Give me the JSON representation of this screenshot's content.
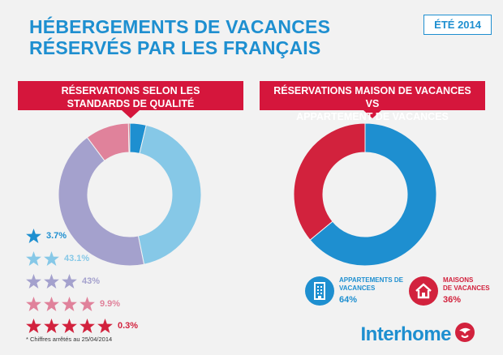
{
  "header": {
    "title_line1": "HÉBERGEMENTS DE VACANCES",
    "title_line2": "RÉSERVÉS PAR LES FRANÇAIS",
    "badge": "ÉTÉ 2014"
  },
  "banners": {
    "left_line1": "RÉSERVATIONS SELON LES",
    "left_line2": "STANDARDS DE QUALITÉ",
    "right_line1": "RÉSERVATIONS MAISON DE VACANCES VS",
    "right_line2": "APPARTEMENT DE VACANCES"
  },
  "colors": {
    "blue": "#1e8fd0",
    "red": "#d2223d",
    "banner_red": "#d5163c"
  },
  "chart_data": [
    {
      "type": "pie",
      "categories": [
        "1 star",
        "2 stars",
        "3 stars",
        "4 stars",
        "5 stars"
      ],
      "values": [
        3.7,
        43.1,
        43,
        9.9,
        0.3
      ],
      "labels": [
        "3.7%",
        "43.1%",
        "43%",
        "9.9%",
        "0.3%"
      ],
      "colors": [
        "#1e8fd0",
        "#86c8e7",
        "#a4a1cd",
        "#e0829b",
        "#d2223d"
      ],
      "star_counts": [
        1,
        2,
        3,
        4,
        5
      ]
    },
    {
      "type": "pie",
      "categories": [
        "APPARTEMENTS DE VACANCES",
        "MAISONS DE VACANCES"
      ],
      "values": [
        64,
        36
      ],
      "labels": [
        "64%",
        "36%"
      ],
      "colors": [
        "#1e8fd0",
        "#d2223d"
      ]
    }
  ],
  "right_legend": {
    "apartments_line1": "APPARTEMENTS DE",
    "apartments_line2": "VACANCES",
    "apartments_value": "64%",
    "houses_line1": "MAISONS",
    "houses_line2": "DE VACANCES",
    "houses_value": "36%",
    "apartments_icon": "apartment-building-icon",
    "houses_icon": "house-icon"
  },
  "footnote": "* Chiffres arrêtés au 25/04/2014",
  "brand": {
    "name": "Interhome",
    "logo_icon": "interhome-bird-logo-icon"
  }
}
